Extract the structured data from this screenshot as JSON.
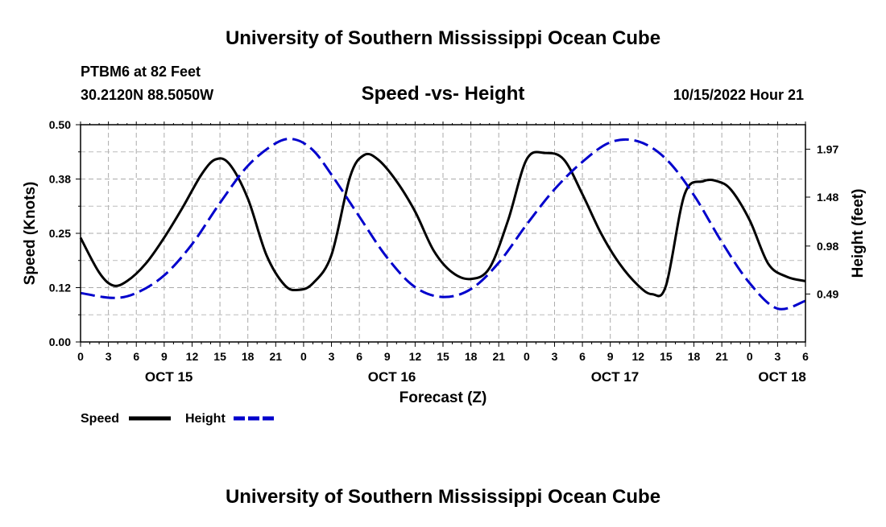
{
  "header": {
    "title": "University of Southern Mississippi Ocean Cube",
    "station": "PTBM6 at 82 Feet",
    "coords": "30.2120N  88.5050W",
    "subtitle": "Speed -vs- Height",
    "datetime": "10/15/2022 Hour 21"
  },
  "footer": {
    "title": "University of Southern Mississippi Ocean Cube"
  },
  "chart_data": {
    "type": "line",
    "title": "Speed -vs- Height",
    "xlabel": "Forecast (Z)",
    "ylabel_left": "Speed (Knots)",
    "ylabel_right": "Height (feet)",
    "xlim": [
      0,
      78
    ],
    "ylim_left": [
      0,
      0.5
    ],
    "ylim_right": [
      0,
      2.22
    ],
    "grid": true,
    "x_tick_labels": [
      "0",
      "3",
      "6",
      "9",
      "12",
      "15",
      "18",
      "21",
      "0",
      "3",
      "6",
      "9",
      "12",
      "15",
      "18",
      "21",
      "0",
      "3",
      "6",
      "9",
      "12",
      "15",
      "18",
      "21",
      "0",
      "3",
      "6"
    ],
    "left_tick_labels": [
      "0.00",
      "0.12",
      "0.25",
      "0.38",
      "0.50"
    ],
    "left_tick_values": [
      0,
      0.125,
      0.25,
      0.375,
      0.5
    ],
    "right_tick_labels": [
      "0.49",
      "0.98",
      "1.48",
      "1.97"
    ],
    "right_tick_values": [
      0.49,
      0.98,
      1.48,
      1.97
    ],
    "date_labels": [
      {
        "label": "OCT 15",
        "hour": 9.5
      },
      {
        "label": "OCT 16",
        "hour": 33.5
      },
      {
        "label": "OCT 17",
        "hour": 57.5
      },
      {
        "label": "OCT 18",
        "hour": 75.5
      }
    ],
    "series": [
      {
        "name": "Speed",
        "axis": "left",
        "color": "#000000",
        "style": "solid",
        "x": [
          0,
          2,
          3.5,
          5,
          7,
          9,
          11,
          13,
          14.5,
          16,
          18,
          20,
          22,
          23.5,
          25,
          27,
          29,
          30.5,
          32,
          34,
          36,
          38,
          40,
          42,
          44,
          46,
          48,
          50,
          52,
          54,
          56,
          58,
          60,
          61.5,
          63,
          65,
          67,
          68.5,
          70,
          72,
          74,
          76,
          78
        ],
        "values": [
          0.24,
          0.16,
          0.13,
          0.14,
          0.18,
          0.24,
          0.31,
          0.385,
          0.42,
          0.41,
          0.33,
          0.2,
          0.13,
          0.12,
          0.135,
          0.2,
          0.38,
          0.43,
          0.42,
          0.37,
          0.3,
          0.21,
          0.16,
          0.145,
          0.17,
          0.28,
          0.42,
          0.435,
          0.42,
          0.34,
          0.25,
          0.18,
          0.13,
          0.11,
          0.13,
          0.34,
          0.37,
          0.37,
          0.35,
          0.28,
          0.18,
          0.15,
          0.14
        ]
      },
      {
        "name": "Height",
        "axis": "right",
        "color": "#0000cc",
        "style": "dashed",
        "x": [
          0,
          3.5,
          6,
          9,
          12,
          15,
          18,
          21,
          23,
          25,
          27,
          30,
          33,
          36,
          39,
          42,
          45,
          48,
          51,
          54,
          57,
          60,
          63,
          66,
          69,
          72,
          75,
          78
        ],
        "values": [
          0.5,
          0.45,
          0.5,
          0.68,
          1.0,
          1.42,
          1.8,
          2.03,
          2.07,
          1.96,
          1.71,
          1.28,
          0.86,
          0.56,
          0.46,
          0.54,
          0.81,
          1.2,
          1.56,
          1.84,
          2.04,
          2.05,
          1.87,
          1.5,
          1.02,
          0.6,
          0.34,
          0.42
        ]
      }
    ],
    "legend": {
      "position": "bottom-left",
      "entries": [
        {
          "name": "Speed",
          "color": "#000000",
          "style": "solid"
        },
        {
          "name": "Height",
          "color": "#0000cc",
          "style": "dashed"
        }
      ]
    }
  }
}
